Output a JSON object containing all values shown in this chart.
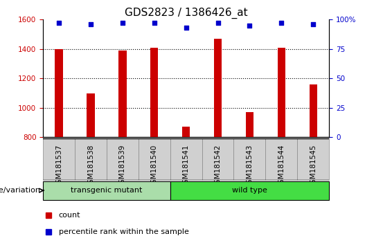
{
  "title": "GDS2823 / 1386426_at",
  "samples": [
    "GSM181537",
    "GSM181538",
    "GSM181539",
    "GSM181540",
    "GSM181541",
    "GSM181542",
    "GSM181543",
    "GSM181544",
    "GSM181545"
  ],
  "counts": [
    1400,
    1100,
    1390,
    1410,
    870,
    1470,
    970,
    1410,
    1160
  ],
  "percentiles": [
    97,
    96,
    97,
    97,
    93,
    97,
    95,
    97,
    96
  ],
  "ylim_left": [
    800,
    1600
  ],
  "ylim_right": [
    0,
    100
  ],
  "yticks_left": [
    800,
    1000,
    1200,
    1400,
    1600
  ],
  "yticks_right": [
    0,
    25,
    50,
    75,
    100
  ],
  "bar_color": "#cc0000",
  "dot_color": "#0000cc",
  "baseline": 800,
  "groups": [
    {
      "label": "transgenic mutant",
      "start": 0,
      "end": 4,
      "color": "#aaddaa"
    },
    {
      "label": "wild type",
      "start": 4,
      "end": 9,
      "color": "#44dd44"
    }
  ],
  "group_label": "genotype/variation",
  "legend_items": [
    {
      "label": "count",
      "color": "#cc0000"
    },
    {
      "label": "percentile rank within the sample",
      "color": "#0000cc"
    }
  ],
  "title_fontsize": 11,
  "tick_label_fontsize": 7.5,
  "bar_width": 0.25,
  "grid_vals": [
    1000,
    1200,
    1400
  ],
  "ticklabel_bg": "#d0d0d0",
  "ticklabel_edge": "#888888"
}
